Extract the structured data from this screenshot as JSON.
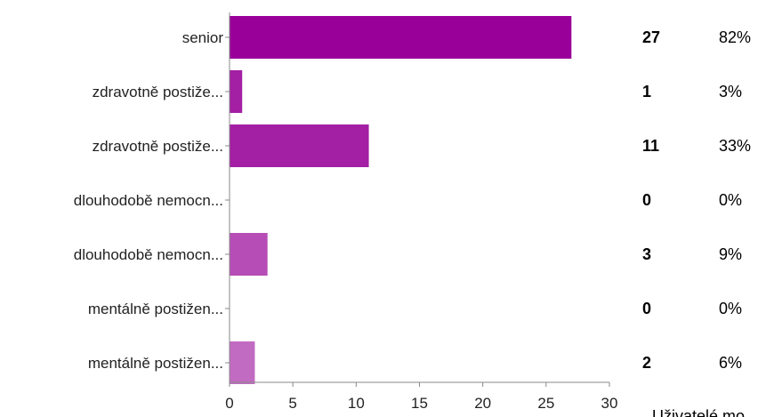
{
  "chart_data": {
    "type": "bar",
    "orientation": "horizontal",
    "categories": [
      "senior",
      "zdravotně postiže...",
      "zdravotně postiže...",
      "dlouhodobě nemocn...",
      "dlouhodobě nemocn...",
      "mentálně postižen...",
      "mentálně postižen..."
    ],
    "values": [
      27,
      1,
      11,
      0,
      3,
      0,
      2
    ],
    "percentages": [
      "82%",
      "3%",
      "33%",
      "0%",
      "9%",
      "0%",
      "6%"
    ],
    "bar_colors": [
      "#990099",
      "#a31fa3",
      "#a31fa3",
      "#ad3bad",
      "#b64db6",
      "#bb5cbb",
      "#c26bc2"
    ],
    "xlim": [
      0,
      30
    ],
    "xticks": [
      0,
      5,
      10,
      15,
      20,
      25,
      30
    ],
    "xlabel": "",
    "ylabel": "",
    "grid": false,
    "footer_text": "Uživatelé mo"
  }
}
